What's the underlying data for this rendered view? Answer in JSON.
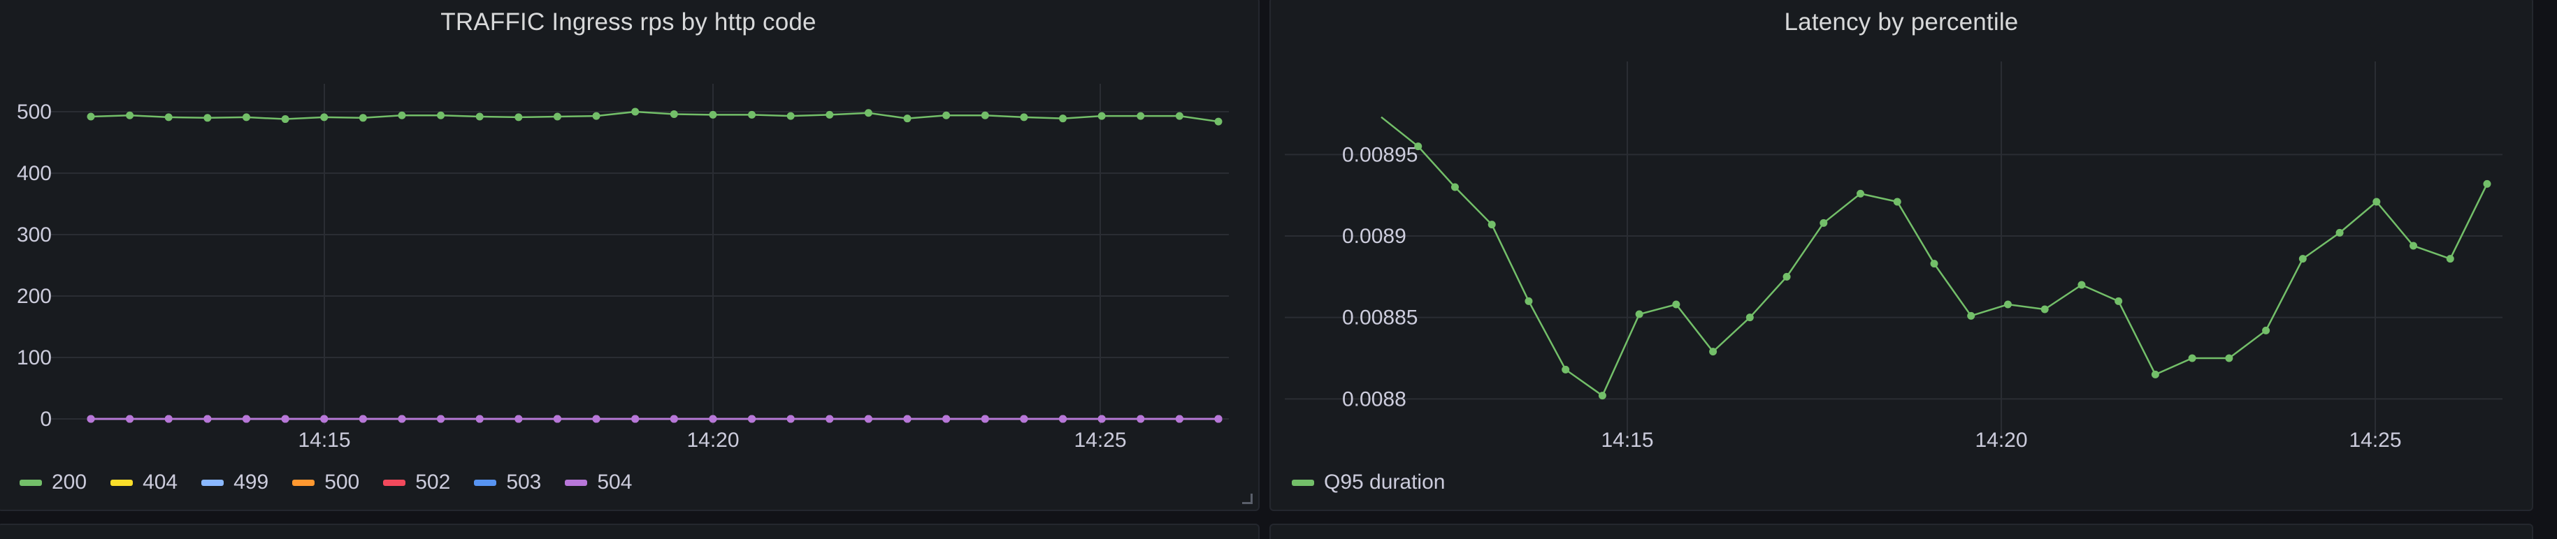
{
  "panels": {
    "traffic": {
      "title": "TRAFFIC Ingress rps by http code",
      "legend": [
        {
          "label": "200",
          "color": "#73bf69"
        },
        {
          "label": "404",
          "color": "#fade2a"
        },
        {
          "label": "499",
          "color": "#8ab8ff"
        },
        {
          "label": "500",
          "color": "#ff9830"
        },
        {
          "label": "502",
          "color": "#f2495c"
        },
        {
          "label": "503",
          "color": "#5794f2"
        },
        {
          "label": "504",
          "color": "#b877d9"
        }
      ]
    },
    "latency": {
      "title": "Latency by percentile",
      "legend": [
        {
          "label": "Q95 duration",
          "color": "#73bf69"
        }
      ]
    }
  },
  "chart_data": [
    {
      "type": "line",
      "title": "TRAFFIC Ingress rps by http code",
      "x_ticks": [
        "14:15",
        "14:20",
        "14:25"
      ],
      "y_ticks": [
        "0",
        "100",
        "200",
        "300",
        "400",
        "500"
      ],
      "ylim": [
        0,
        500
      ],
      "grid": true,
      "legend_position": "bottom-left",
      "series": [
        {
          "name": "200",
          "values": [
            492,
            494,
            491,
            490,
            491,
            488,
            491,
            490,
            494,
            494,
            492,
            491,
            492,
            493,
            500,
            496,
            495,
            495,
            493,
            495,
            498,
            489,
            494,
            494,
            491,
            489,
            493,
            493,
            493,
            484
          ]
        },
        {
          "name": "404",
          "values": [
            0,
            0,
            0,
            0,
            0,
            0,
            0,
            0,
            0,
            0,
            0,
            0,
            0,
            0,
            0,
            0,
            0,
            0,
            0,
            0,
            0,
            0,
            0,
            0,
            0,
            0,
            0,
            0,
            0,
            0
          ]
        },
        {
          "name": "499",
          "values": [
            0,
            0,
            0,
            0,
            0,
            0,
            0,
            0,
            0,
            0,
            0,
            0,
            0,
            0,
            0,
            0,
            0,
            0,
            0,
            0,
            0,
            0,
            0,
            0,
            0,
            0,
            0,
            0,
            0,
            0
          ]
        },
        {
          "name": "500",
          "values": [
            0,
            0,
            0,
            0,
            0,
            0,
            0,
            0,
            0,
            0,
            0,
            0,
            0,
            0,
            0,
            0,
            0,
            0,
            0,
            0,
            0,
            0,
            0,
            0,
            0,
            0,
            0,
            0,
            0,
            0
          ]
        },
        {
          "name": "502",
          "values": [
            0,
            0,
            0,
            0,
            0,
            0,
            0,
            0,
            0,
            0,
            0,
            0,
            0,
            0,
            0,
            0,
            0,
            0,
            0,
            0,
            0,
            0,
            0,
            0,
            0,
            0,
            0,
            0,
            0,
            0
          ]
        },
        {
          "name": "503",
          "values": [
            0,
            0,
            0,
            0,
            0,
            0,
            0,
            0,
            0,
            0,
            0,
            0,
            0,
            0,
            0,
            0,
            0,
            0,
            0,
            0,
            0,
            0,
            0,
            0,
            0,
            0,
            0,
            0,
            0,
            0
          ]
        },
        {
          "name": "504",
          "values": [
            0,
            0,
            0,
            0,
            0,
            0,
            0,
            0,
            0,
            0,
            0,
            0,
            0,
            0,
            0,
            0,
            0,
            0,
            0,
            0,
            0,
            0,
            0,
            0,
            0,
            0,
            0,
            0,
            0,
            0
          ]
        }
      ]
    },
    {
      "type": "line",
      "title": "Latency by percentile",
      "x_ticks": [
        "14:15",
        "14:20",
        "14:25"
      ],
      "y_ticks": [
        "0.0088",
        "0.00885",
        "0.0089",
        "0.00895"
      ],
      "ylim": [
        0.00878,
        0.00899
      ],
      "grid": true,
      "legend_position": "bottom-left",
      "series": [
        {
          "name": "Q95 duration",
          "values": [
            0.008973,
            0.008955,
            0.00893,
            0.008907,
            0.00886,
            0.008818,
            0.008802,
            0.008852,
            0.008858,
            0.008829,
            0.00885,
            0.008875,
            0.008908,
            0.008926,
            0.008921,
            0.008883,
            0.008851,
            0.008858,
            0.008855,
            0.00887,
            0.00886,
            0.008815,
            0.008825,
            0.008825,
            0.008842,
            0.008886,
            0.008902,
            0.008921,
            0.008894,
            0.008886,
            0.008932
          ]
        }
      ]
    }
  ]
}
